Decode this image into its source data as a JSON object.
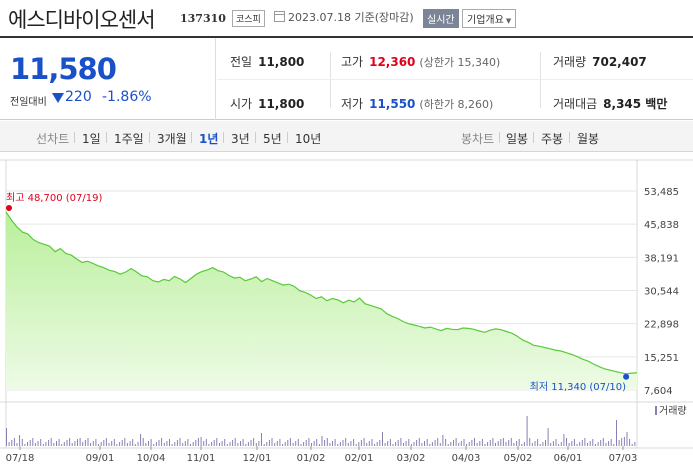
{
  "header": {
    "title": "에스디바이오센서",
    "code": "137310",
    "market": "코스피",
    "date": "2023.07.18 기준(장마감)",
    "realtime": "실시간",
    "overview": "기업개요"
  },
  "summary": {
    "price": "11,580",
    "change_label": "전일대비",
    "change_value": "220",
    "change_pct": "-1.86%",
    "prev_close": {
      "label": "전일",
      "value": "11,800"
    },
    "high": {
      "label": "고가",
      "value": "12,360",
      "sub": "(상한가 15,340)"
    },
    "volume": {
      "label": "거래량",
      "value": "702,407"
    },
    "open": {
      "label": "시가",
      "value": "11,800"
    },
    "low": {
      "label": "저가",
      "value": "11,550",
      "sub": "(하한가 8,260)"
    },
    "amount": {
      "label": "거래대금",
      "value": "8,345 백만"
    }
  },
  "toolbar": {
    "line_chart": "선차트",
    "periods": [
      "1일",
      "1주일",
      "3개월",
      "1년",
      "3년",
      "5년",
      "10년"
    ],
    "active_period": "1년",
    "candle_chart": "봉차트",
    "candle_periods": [
      "일봉",
      "주봉",
      "월봉"
    ]
  },
  "chart_data": {
    "type": "area",
    "ylim": [
      7604,
      53485
    ],
    "yticks": [
      "53,485",
      "45,838",
      "38,191",
      "30,544",
      "22,898",
      "15,251",
      "7,604"
    ],
    "xticks": [
      "07/18",
      "09/01",
      "10/04",
      "11/01",
      "12/01",
      "01/02",
      "02/01",
      "03/02",
      "04/03",
      "05/02",
      "06/01",
      "07/03"
    ],
    "high_annotation": "최고 48,700 (07/19)",
    "low_annotation": "최저 11,340 (07/10)",
    "volume_label": "거래량",
    "series": [
      {
        "values": [
          48700,
          46800,
          45200,
          44000,
          43600,
          42300,
          41600,
          41200,
          40800,
          39500,
          40200,
          39100,
          38700,
          37800,
          37000,
          37300,
          36800,
          36200,
          35800,
          35200,
          34900,
          34300,
          34800,
          35600,
          34800,
          33900,
          33700,
          32800,
          32500,
          33100,
          32800,
          33800,
          33200,
          32400,
          33300,
          34300,
          34900,
          35300,
          35800,
          35100,
          34800,
          34000,
          33400,
          33600,
          32800,
          33200,
          33700,
          32600,
          33300,
          32800,
          32300,
          31800,
          32000,
          31500,
          30500,
          30100,
          29500,
          28700,
          29100,
          28200,
          28700,
          28400,
          27700,
          28300,
          27900,
          28800,
          27500,
          27100,
          26700,
          26300,
          25200,
          24600,
          24100,
          23400,
          22900,
          22600,
          22300,
          21900,
          22100,
          21700,
          21300,
          21800,
          21600,
          21500,
          21900,
          21800,
          21600,
          21200,
          20900,
          21400,
          21700,
          21500,
          21100,
          20700,
          20000,
          19100,
          18600,
          17900,
          17700,
          17400,
          17100,
          16800,
          16600,
          16200,
          15800,
          15300,
          14700,
          14300,
          13600,
          13000,
          12500,
          12200,
          11900,
          11600,
          11340,
          11500,
          11580
        ]
      }
    ]
  }
}
